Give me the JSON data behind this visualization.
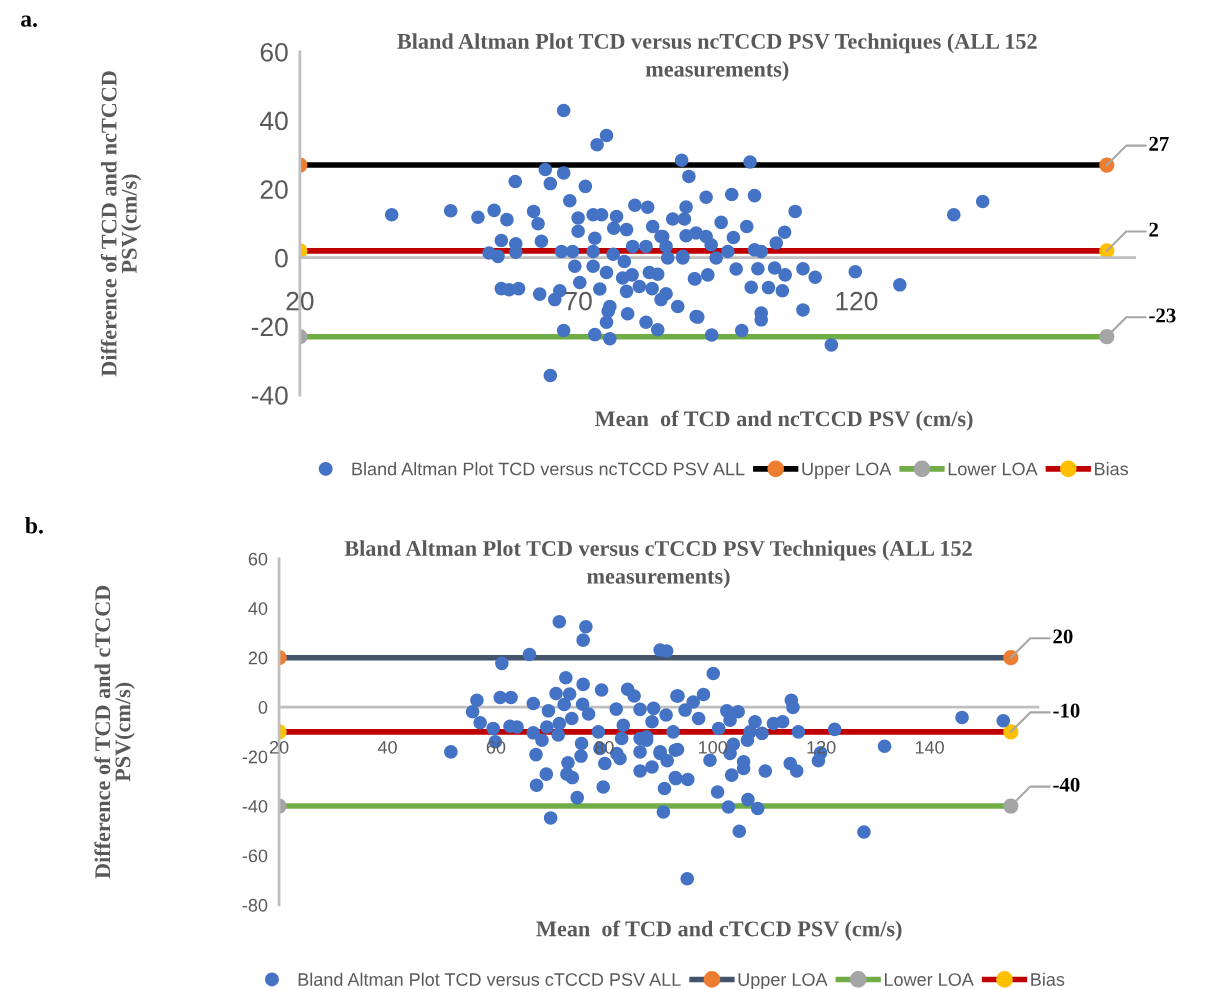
{
  "chart_data": [
    {
      "type": "scatter",
      "title": "Bland Altman Plot TCD versus ncTCCD PSV Techniques (ALL 152 measurements)",
      "xlabel": "Mean  of TCD and ncTCCD PSV (cm/s)",
      "ylabel": "Difference of TCD and ncTCCD PSV(cm/s)",
      "xlim": [
        20,
        170
      ],
      "xticks": [
        20,
        70,
        120
      ],
      "ylim": [
        -40,
        60
      ],
      "yticks": [
        -40,
        -20,
        0,
        20,
        40,
        60
      ],
      "legend": "bottom",
      "marker": "circle",
      "annotations": [
        "a."
      ],
      "series": [
        {
          "name": "Bland Altman Plot TCD versus ncTCCD PSV ALL",
          "color": "#4472c4",
          "x": [
            67.4,
            75.1,
            73.4,
            88.6,
            89.9,
            64.1,
            67.4,
            65.0,
            58.7,
            71.3,
            68.5,
            36.5,
            47.1,
            52.0,
            54.9,
            57.2,
            62.0,
            62.8,
            70.0,
            70.0,
            72.7,
            74.2,
            76.9,
            76.4,
            78.7,
            80.2,
            82.5,
            83.4,
            87.0,
            89.1,
            89.4,
            89.4,
            56.2,
            58.8,
            58.8,
            63.4,
            54.0,
            55.6,
            67.0,
            69.0,
            73.0,
            72.7,
            76.3,
            78.3,
            79.8,
            82.2,
            84.9,
            86.1,
            88.8,
            69.4,
            72.7,
            75.1,
            78.0,
            79.7,
            82.8,
            84.3,
            90.9,
            56.2,
            57.6,
            59.3,
            63.1,
            66.7,
            65.8,
            70.3,
            73.9,
            78.7,
            81.0,
            83.3,
            85.8,
            84.9,
            87.9,
            75.7,
            75.4,
            78.9,
            75.1,
            82.2,
            91.2,
            67.4,
            73.0,
            75.7,
            84.3,
            65.0,
            100.9,
            93.0,
            97.6,
            101.7,
            109.0,
            95.7,
            100.3,
            107.1,
            97.9,
            105.6,
            91.2,
            93.0,
            93.9,
            85.2,
            85.8,
            96.9,
            101.7,
            102.9,
            88.8,
            94.8,
            98.4,
            102.3,
            105.3,
            107.2,
            110.4,
            112.6,
            119.8,
            91.0,
            93.3,
            101.1,
            104.2,
            106.7,
            127.8,
            137.5,
            142.7,
            110.4,
            102.9,
            102.9,
            91.5,
            94.0,
            99.4,
            115.5
          ],
          "values": [
            42.9,
            35.6,
            32.9,
            28.4,
            23.7,
            25.7,
            24.7,
            21.6,
            22.2,
            20.8,
            16.6,
            12.5,
            13.7,
            11.8,
            13.8,
            11.1,
            13.5,
            9.9,
            11.6,
            7.7,
            12.5,
            12.5,
            12.0,
            8.6,
            8.2,
            15.3,
            14.7,
            9.1,
            11.3,
            11.3,
            14.8,
            6.4,
            5.0,
            4.1,
            1.6,
            4.8,
            1.4,
            0.4,
            1.8,
            1.8,
            5.7,
            1.8,
            1.0,
            -1.1,
            3.3,
            3.3,
            6.2,
            -0.1,
            -0.1,
            -2.5,
            -2.5,
            -4.3,
            -5.9,
            -5.0,
            -4.3,
            -4.8,
            -6.1,
            -9.0,
            -9.3,
            -9.0,
            -10.6,
            -9.6,
            -12.2,
            -7.2,
            -9.1,
            -9.8,
            -8.4,
            -9.0,
            -10.5,
            -12.2,
            -14.2,
            -14.2,
            -15.6,
            -16.3,
            -18.8,
            -18.8,
            -17.1,
            -21.2,
            -22.4,
            -23.6,
            -21.0,
            -34.3,
            27.9,
            17.6,
            18.4,
            18.1,
            13.5,
            10.3,
            9.1,
            7.4,
            5.9,
            4.3,
            7.2,
            6.2,
            3.8,
            6.2,
            3.3,
            1.8,
            2.3,
            1.8,
            0.4,
            -0.1,
            -3.3,
            -3.2,
            -3.0,
            -5.0,
            -3.2,
            -5.7,
            -4.1,
            -6.2,
            -5.0,
            -8.6,
            -8.7,
            -9.6,
            -7.9,
            12.5,
            16.4,
            -15.2,
            -16.1,
            -18.1,
            -17.3,
            -22.5,
            -21.2,
            -25.4
          ]
        },
        {
          "name": "Upper LOA",
          "type": "line",
          "color": "#000000",
          "colors": [
            "#ed7d31",
            "#ed7d31"
          ],
          "x": [
            20,
            165
          ],
          "values": [
            27,
            27
          ],
          "value_labels": [
            null,
            "27"
          ]
        },
        {
          "name": "Lower LOA",
          "type": "line",
          "color": "#70ad47",
          "colors": [
            "#a5a5a5",
            "#a5a5a5"
          ],
          "x": [
            20,
            165
          ],
          "values": [
            -23,
            -23
          ],
          "value_labels": [
            null,
            "-23"
          ]
        },
        {
          "name": "Bias",
          "type": "line",
          "color": "#c00000",
          "colors": [
            "#ffc000",
            "#ffc000"
          ],
          "x": [
            20,
            165
          ],
          "values": [
            2,
            2
          ],
          "value_labels": [
            null,
            "2"
          ]
        }
      ]
    },
    {
      "type": "scatter",
      "title": "Bland Altman Plot TCD versus cTCCD PSV Techniques (ALL 152 measurements)",
      "xlabel": "Mean  of TCD and cTCCD PSV (cm/s)",
      "ylabel": "Difference of TCD and cTCCD PSV(cm/s)",
      "xlim": [
        20,
        160
      ],
      "xticks": [
        20,
        40,
        60,
        80,
        100,
        120,
        140
      ],
      "ylim": [
        -80,
        60
      ],
      "yticks": [
        -80,
        -60,
        -40,
        -20,
        0,
        20,
        40,
        60
      ],
      "legend": "bottom",
      "marker": "circle",
      "annotations": [
        "b."
      ],
      "series": [
        {
          "name": "Bland Altman Plot TCD versus cTCCD PSV ALL",
          "color": "#4472c4",
          "x": [
            71.7,
            76.6,
            76.1,
            66.2,
            61.1,
            90.3,
            91.5,
            72.9,
            76.1,
            79.5,
            56.5,
            55.7,
            57.1,
            60.8,
            62.8,
            66.9,
            71.1,
            73.6,
            72.6,
            76.0,
            77.1,
            69.7,
            74.0,
            82.2,
            84.3,
            85.5,
            89.1,
            91.4,
            93.4,
            86.6,
            83.5,
            88.8,
            59.5,
            62.6,
            63.9,
            59.9,
            51.7,
            66.9,
            68.5,
            69.4,
            71.5,
            71.7,
            75.8,
            78.9,
            79.2,
            83.2,
            86.6,
            87.8,
            86.6,
            90.3,
            93.1,
            67.4,
            75.7,
            82.3,
            82.9,
            91.6,
            73.3,
            80.1,
            86.6,
            88.8,
            69.3,
            73.1,
            74.1,
            93.1,
            67.5,
            79.8,
            91.1,
            75.0,
            90.9,
            70.1,
            100.1,
            93.6,
            98.3,
            96.4,
            94.9,
            97.4,
            102.6,
            104.7,
            103.2,
            107.8,
            111.2,
            112.9,
            114.5,
            114.8,
            109.1,
            106.9,
            106.4,
            115.8,
            122.5,
            101.1,
            92.7,
            87.8,
            146.0,
            153.6,
            131.7,
            93.5,
            90.3,
            103.2,
            103.8,
            119.9,
            119.5,
            99.5,
            105.7,
            105.7,
            103.5,
            109.7,
            114.3,
            115.5,
            93.2,
            95.4,
            100.9,
            102.9,
            106.5,
            108.3,
            104.9,
            127.9,
            95.3
          ],
          "values": [
            34.5,
            32.5,
            27.1,
            21.3,
            17.7,
            23.1,
            22.7,
            11.9,
            9.2,
            6.9,
            2.8,
            -1.9,
            -6.3,
            3.9,
            3.9,
            1.5,
            5.5,
            5.3,
            1.1,
            1.2,
            -2.8,
            -1.5,
            -4.6,
            -0.8,
            7.2,
            4.5,
            -0.5,
            -3.2,
            4.5,
            -0.9,
            -7.3,
            -5.9,
            -8.6,
            -7.7,
            -8.0,
            -14.0,
            -18.1,
            -10.4,
            -13.4,
            -8.0,
            -11.3,
            -6.6,
            -14.7,
            -10.0,
            -16.7,
            -12.7,
            -12.7,
            -13.4,
            -18.1,
            -18.1,
            -17.4,
            -19.2,
            -19.8,
            -18.8,
            -20.8,
            -21.7,
            -22.5,
            -22.8,
            -25.8,
            -24.2,
            -27.1,
            -27.1,
            -28.5,
            -28.5,
            -31.6,
            -32.3,
            -32.9,
            -36.6,
            -42.4,
            -44.8,
            13.6,
            4.5,
            5.1,
            2.1,
            -1.2,
            -4.6,
            -1.5,
            -1.9,
            -5.3,
            -5.9,
            -6.6,
            -5.9,
            2.8,
            -0.1,
            -10.6,
            -10.0,
            -13.4,
            -10.0,
            -9.0,
            -8.6,
            -10.0,
            -12.0,
            -4.2,
            -5.5,
            -15.8,
            -17.1,
            -18.7,
            -18.7,
            -15.0,
            -18.5,
            -21.7,
            -21.5,
            -22.1,
            -24.8,
            -27.5,
            -25.8,
            -22.8,
            -25.8,
            -28.9,
            -29.3,
            -34.3,
            -40.4,
            -37.4,
            -41.0,
            -50.2,
            -50.5,
            -69.4
          ]
        },
        {
          "name": "Upper LOA",
          "type": "line",
          "color": "#44546a",
          "colors": [
            "#ed7d31",
            "#ed7d31"
          ],
          "x": [
            20,
            155
          ],
          "values": [
            20,
            20
          ],
          "value_labels": [
            null,
            "20"
          ]
        },
        {
          "name": "Lower LOA",
          "type": "line",
          "color": "#70ad47",
          "colors": [
            "#a5a5a5",
            "#a5a5a5"
          ],
          "x": [
            20,
            155
          ],
          "values": [
            -40,
            -40
          ],
          "value_labels": [
            null,
            "-40"
          ]
        },
        {
          "name": "Bias",
          "type": "line",
          "color": "#c00000",
          "colors": [
            "#ffc000",
            "#ffc000"
          ],
          "x": [
            20,
            155
          ],
          "values": [
            -10,
            -10
          ],
          "value_labels": [
            null,
            "-10"
          ]
        }
      ]
    }
  ]
}
